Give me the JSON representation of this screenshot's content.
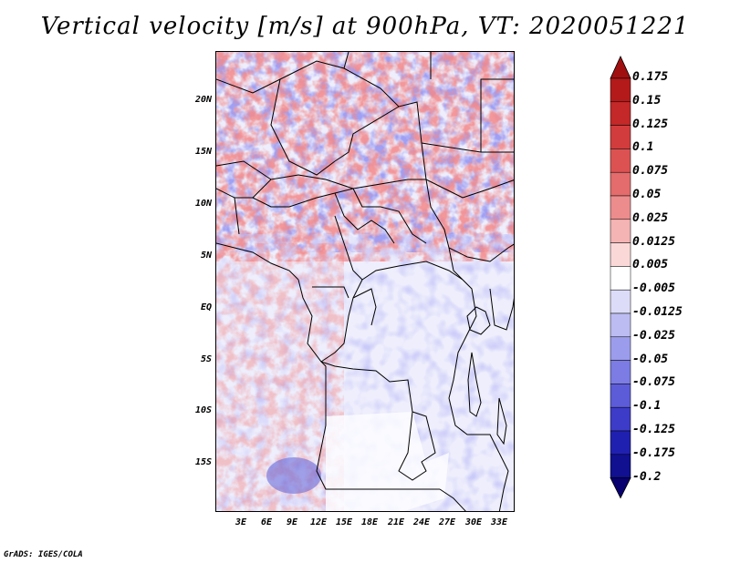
{
  "title": "Vertical velocity [m/s] at 900hPa, VT: 2020051221",
  "credit": "GrADS: IGES/COLA",
  "lat_labels": [
    "20N",
    "15N",
    "10N",
    "5N",
    "EQ",
    "5S",
    "10S",
    "15S"
  ],
  "lon_labels": [
    "3E",
    "6E",
    "9E",
    "12E",
    "15E",
    "18E",
    "21E",
    "24E",
    "27E",
    "30E",
    "33E"
  ],
  "colorbar": {
    "levels": [
      "0.175",
      "0.15",
      "0.125",
      "0.1",
      "0.075",
      "0.05",
      "0.025",
      "0.0125",
      "0.005",
      "-0.005",
      "-0.0125",
      "-0.025",
      "-0.05",
      "-0.075",
      "-0.1",
      "-0.125",
      "-0.175",
      "-0.2"
    ],
    "colors": [
      "#a01010",
      "#b41a1a",
      "#c42828",
      "#d23c3c",
      "#dc5252",
      "#e46c6c",
      "#ec8c8c",
      "#f4b4b4",
      "#fad8d8",
      "#ffffff",
      "#dcdcf8",
      "#bcbcf2",
      "#9c9cec",
      "#7c7ce4",
      "#5c5cd8",
      "#3c3cc8",
      "#2020b0",
      "#101090",
      "#080070"
    ]
  }
}
